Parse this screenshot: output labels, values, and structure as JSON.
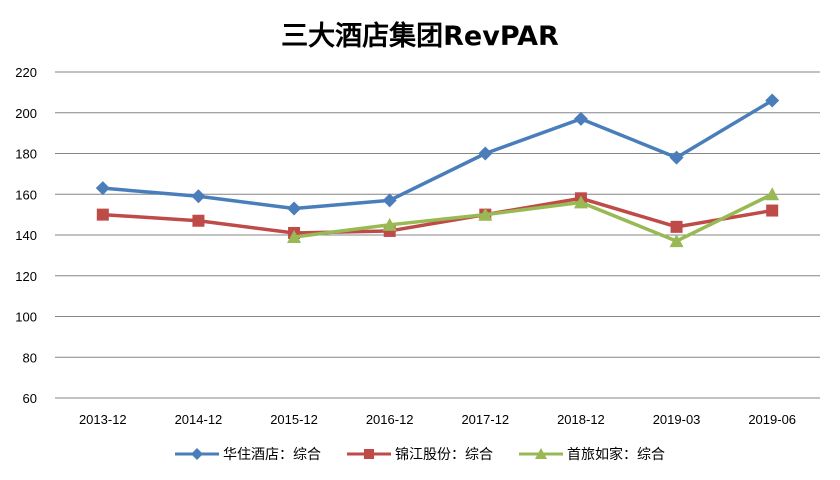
{
  "chart_data": {
    "type": "line",
    "title": "三大酒店集团RevPAR",
    "xlabel": "",
    "ylabel": "",
    "categories": [
      "2013-12",
      "2014-12",
      "2015-12",
      "2016-12",
      "2017-12",
      "2018-12",
      "2019-03",
      "2019-06"
    ],
    "ylim": [
      60,
      220
    ],
    "yticks": [
      60,
      80,
      100,
      120,
      140,
      160,
      180,
      200,
      220
    ],
    "grid": true,
    "legend_position": "bottom",
    "series": [
      {
        "name": "华住酒店：综合",
        "color": "#4A7EBB",
        "marker": "diamond",
        "values": [
          163,
          159,
          153,
          157,
          180,
          197,
          178,
          206
        ]
      },
      {
        "name": "锦江股份：综合",
        "color": "#BE4B48",
        "marker": "square",
        "values": [
          150,
          147,
          141,
          142,
          150,
          158,
          144,
          152
        ]
      },
      {
        "name": "首旅如家：综合",
        "color": "#98B954",
        "marker": "triangle",
        "values": [
          null,
          null,
          139,
          145,
          150,
          156,
          137,
          160
        ]
      }
    ]
  }
}
